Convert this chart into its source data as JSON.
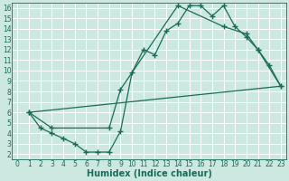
{
  "xlabel": "Humidex (Indice chaleur)",
  "bg_color": "#cce8e0",
  "grid_color": "#ffffff",
  "line_color": "#1a6b5a",
  "xlim": [
    -0.5,
    23.5
  ],
  "ylim": [
    1.5,
    16.5
  ],
  "xticks": [
    0,
    1,
    2,
    3,
    4,
    5,
    6,
    7,
    8,
    9,
    10,
    11,
    12,
    13,
    14,
    15,
    16,
    17,
    18,
    19,
    20,
    21,
    22,
    23
  ],
  "yticks": [
    2,
    3,
    4,
    5,
    6,
    7,
    8,
    9,
    10,
    11,
    12,
    13,
    14,
    15,
    16
  ],
  "line1_x": [
    1,
    2,
    3,
    4,
    5,
    6,
    7,
    8,
    9,
    10,
    11,
    12,
    13,
    14,
    15,
    16,
    17,
    18,
    19,
    20,
    21,
    22,
    23
  ],
  "line1_y": [
    6,
    4.5,
    4,
    3.5,
    3,
    2.2,
    2.2,
    2.2,
    4.2,
    9.8,
    12.0,
    11.5,
    13.8,
    14.5,
    16.2,
    16.2,
    15.2,
    16.2,
    14.2,
    13.2,
    12.0,
    10.5,
    8.5
  ],
  "line2_x": [
    1,
    3,
    8,
    9,
    14,
    18,
    20,
    21,
    23
  ],
  "line2_y": [
    6,
    4.5,
    4.5,
    8.2,
    16.2,
    14.2,
    13.5,
    12.0,
    8.5
  ],
  "line3_x": [
    1,
    23
  ],
  "line3_y": [
    6,
    8.5
  ],
  "marker_size": 2.5,
  "linewidth": 0.9,
  "tick_fontsize": 5.5,
  "xlabel_fontsize": 7
}
